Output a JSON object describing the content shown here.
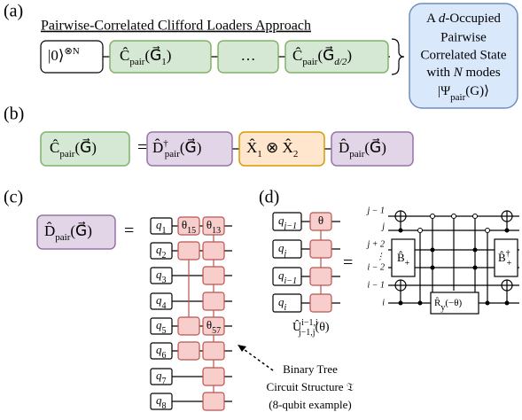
{
  "a": {
    "label": "(a)",
    "title": "Pairwise-Correlated Clifford Loaders Approach",
    "init": [
      "|0⟩",
      "⊗N"
    ],
    "c1": [
      "Ĉ",
      "pair",
      "(G⃗",
      "1",
      ")"
    ],
    "dots": "…",
    "cd": [
      "Ĉ",
      "pair",
      "(G⃗",
      "d/2",
      ")"
    ],
    "result": {
      "line1": [
        "A ",
        "d",
        "-Occupied"
      ],
      "line2": "Pairwise",
      "line3": "Correlated State",
      "line4": [
        "with ",
        "N",
        " modes"
      ],
      "line5": [
        "|Ψ",
        "pair",
        "(G)⟩"
      ]
    }
  },
  "b": {
    "label": "(b)",
    "lhs": [
      "Ĉ",
      "pair",
      "(G⃗)"
    ],
    "eq": "=",
    "ddag": [
      "D̂",
      "†",
      "pair",
      "(G⃗)"
    ],
    "x": [
      "X̂",
      "1",
      " ⊗ ",
      "X̂",
      "2"
    ],
    "d": [
      "D̂",
      "pair",
      "(G⃗)"
    ]
  },
  "c": {
    "label": "(c)",
    "lhs": [
      "D̂",
      "pair",
      "(G⃗)"
    ],
    "eq": "=",
    "qubits": [
      [
        "q",
        "1"
      ],
      [
        "q",
        "2"
      ],
      [
        "q",
        "3"
      ],
      [
        "q",
        "4"
      ],
      [
        "q",
        "5"
      ],
      [
        "q",
        "6"
      ],
      [
        "q",
        "7"
      ],
      [
        "q",
        "8"
      ]
    ],
    "theta15": [
      "θ",
      "15"
    ],
    "theta13": [
      "θ",
      "13"
    ],
    "theta57": [
      "θ",
      "57"
    ],
    "caption": [
      "Binary Tree",
      "Circuit Structure 𝔗",
      "(8-qubit example)"
    ]
  },
  "d": {
    "label": "(d)",
    "qubits": [
      [
        "q",
        "j−1"
      ],
      [
        "q",
        "j"
      ],
      [
        "q",
        "i−1"
      ],
      [
        "q",
        "i"
      ]
    ],
    "theta": "θ",
    "eq": "=",
    "unitary": [
      "Û",
      "i−1,i",
      "j−1,j",
      "(θ)"
    ],
    "wires": [
      "j − 1",
      "j",
      "j + 2",
      "⋮",
      "i − 2",
      "i − 1",
      "i"
    ],
    "bplus": [
      "B̂",
      "+"
    ],
    "bdag": [
      "B̂",
      "†",
      "+"
    ],
    "ry": [
      "R̂",
      "y",
      "(−θ)"
    ]
  }
}
